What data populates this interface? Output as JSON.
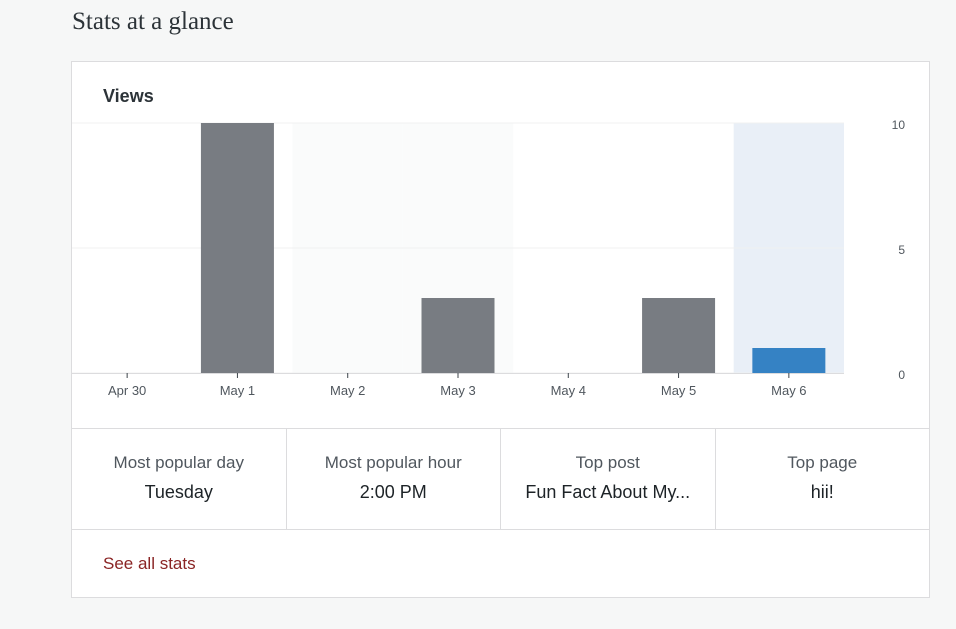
{
  "page": {
    "title": "Stats at a glance"
  },
  "card": {
    "title": "Views"
  },
  "chart_data": {
    "type": "bar",
    "title": "Views",
    "categories": [
      "Apr 30",
      "May 1",
      "May 2",
      "May 3",
      "May 4",
      "May 5",
      "May 6"
    ],
    "values": [
      0,
      10,
      0,
      3,
      0,
      3,
      1
    ],
    "ylim": [
      0,
      10
    ],
    "yticks": [
      0,
      5,
      10
    ],
    "selected_category": "May 6",
    "weekend_categories": [
      "May 2",
      "May 3"
    ],
    "colors": {
      "bar": "#787c82",
      "selected_bar": "#3582c4",
      "selected_band": "#e9eff7",
      "weekend_band": "#fafbfb"
    },
    "grid": true
  },
  "highlights": [
    {
      "label": "Most popular day",
      "value": "Tuesday"
    },
    {
      "label": "Most popular hour",
      "value": "2:00 PM"
    },
    {
      "label": "Top post",
      "value": "Fun Fact About My..."
    },
    {
      "label": "Top page",
      "value": "hii!"
    }
  ],
  "footer": {
    "link_label": "See all stats"
  }
}
